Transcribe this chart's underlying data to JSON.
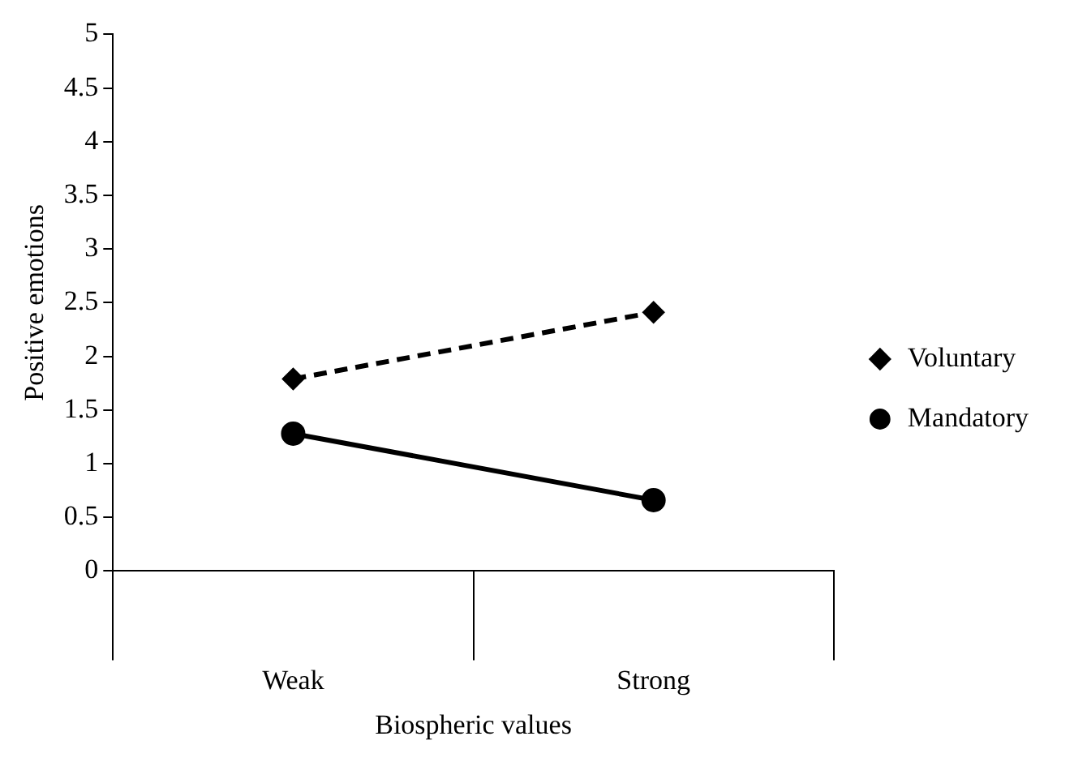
{
  "chart_data": {
    "type": "line",
    "xlabel": "Biospheric values",
    "ylabel": "Positive emotions",
    "categories": [
      "Weak",
      "Strong"
    ],
    "series": [
      {
        "name": "Voluntary",
        "color": "#000000",
        "values": [
          1.79,
          2.41
        ],
        "marker": "diamond",
        "line_style": "dashed"
      },
      {
        "name": "Mandatory",
        "color": "#000000",
        "values": [
          1.28,
          0.66
        ],
        "marker": "circle",
        "line_style": "solid"
      }
    ],
    "ylim": [
      0,
      5
    ],
    "yticks": [
      0,
      0.5,
      1,
      1.5,
      2,
      2.5,
      3,
      3.5,
      4,
      4.5,
      5
    ],
    "legend": "right",
    "grid": false
  }
}
